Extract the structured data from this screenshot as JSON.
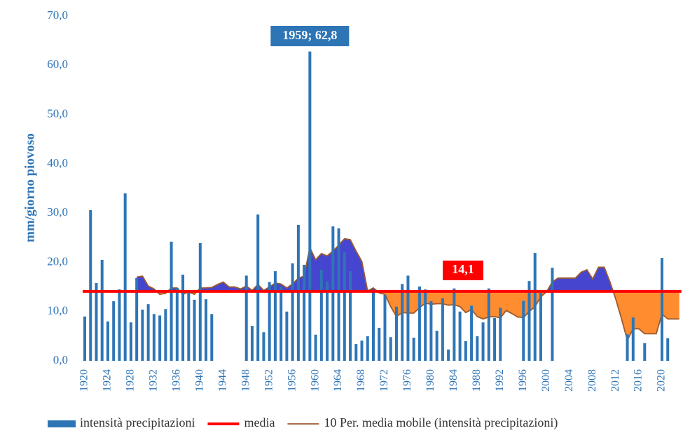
{
  "chart_data": {
    "type": "bar-line",
    "y_label": "mm/giorno piovoso",
    "categories": [
      "1920",
      null,
      null,
      null,
      "1924",
      null,
      null,
      null,
      "1928",
      null,
      null,
      null,
      "1932",
      null,
      null,
      null,
      "1936",
      null,
      null,
      null,
      "1940",
      null,
      null,
      null,
      "1944",
      null,
      null,
      null,
      "1948",
      null,
      null,
      null,
      "1952",
      null,
      null,
      null,
      "1956",
      null,
      null,
      null,
      "1960",
      null,
      null,
      null,
      "1964",
      null,
      null,
      null,
      "1968",
      null,
      null,
      null,
      "1972",
      null,
      null,
      null,
      "1976",
      null,
      null,
      null,
      "1980",
      null,
      null,
      null,
      "1984",
      null,
      null,
      null,
      "1988",
      null,
      null,
      null,
      "1992",
      null,
      null,
      null,
      "1996",
      null,
      null,
      null,
      "2000",
      null,
      null,
      null,
      "2004",
      null,
      null,
      null,
      "2008",
      null,
      null,
      null,
      "2012",
      null,
      null,
      null,
      "2016",
      null,
      null,
      null,
      "2020",
      null,
      null,
      null
    ],
    "series": [
      {
        "name": "intensità precipitazioni",
        "color": "#2e75b6",
        "type": "bar",
        "values": [
          9.0,
          30.6,
          15.8,
          20.5,
          8.0,
          12.1,
          14.5,
          34.0,
          7.8,
          16.8,
          10.4,
          11.5,
          9.5,
          9.2,
          10.5,
          24.2,
          14.8,
          17.5,
          14.0,
          12.4,
          23.9,
          12.5,
          9.5,
          null,
          null,
          null,
          null,
          null,
          17.3,
          7.1,
          29.7,
          5.8,
          16.0,
          18.2,
          15.0,
          10.0,
          19.8,
          27.6,
          19.5,
          62.8,
          5.3,
          18.5,
          16.1,
          27.3,
          26.9,
          22.0,
          18.2,
          3.4,
          4.1,
          5.0,
          14.0,
          6.7,
          13.4,
          4.8,
          11.0,
          15.6,
          17.3,
          4.7,
          15.1,
          14.5,
          12.1,
          6.1,
          12.7,
          2.3,
          14.7,
          10.0,
          4.0,
          11.2,
          5.0,
          7.8,
          14.7,
          8.7,
          10.8,
          null,
          null,
          null,
          12.2,
          16.2,
          21.9,
          13.8,
          null,
          18.9,
          null,
          null,
          null,
          null,
          null,
          null,
          null,
          null,
          null,
          null,
          null,
          null,
          5.4,
          8.8,
          null,
          3.6,
          null,
          null,
          20.9,
          4.6,
          null,
          null
        ],
        "value_labels": [
          null,
          null,
          null,
          null,
          null,
          null,
          null,
          null,
          null,
          null,
          null,
          null,
          null,
          null,
          null,
          null,
          null,
          null,
          null,
          null,
          null,
          null,
          null,
          null,
          null,
          null,
          null,
          null,
          null,
          null,
          null,
          null,
          null,
          null,
          null,
          null,
          null,
          null,
          null,
          "1959; 62,8",
          null,
          null,
          null,
          null,
          null,
          null,
          null,
          null,
          null,
          null,
          null,
          null,
          null,
          null,
          null,
          null,
          null,
          null,
          null,
          null,
          null,
          null,
          null,
          null,
          null,
          null,
          null,
          null,
          null,
          null,
          null,
          null,
          null,
          null,
          null,
          null,
          null,
          null,
          null,
          null,
          null,
          null,
          null,
          null,
          null,
          null,
          null,
          null,
          null,
          null,
          null,
          null,
          null,
          null,
          null,
          null,
          null,
          null,
          null,
          null,
          null,
          null,
          null,
          null
        ]
      },
      {
        "name": "media",
        "color": "#ff0000",
        "type": "hline",
        "value": 14.1,
        "value_label": "14,1"
      },
      {
        "name": "10 Per. media mobile (intensità precipitazioni)",
        "color": "#9c5a2e",
        "type": "line",
        "above_color": "#4545cf",
        "below_color": "#ff8c2e",
        "values": [
          null,
          null,
          null,
          null,
          null,
          null,
          null,
          null,
          null,
          17.0,
          17.2,
          15.2,
          14.6,
          13.5,
          13.7,
          14.8,
          14.8,
          13.5,
          14.0,
          13.5,
          14.8,
          14.8,
          14.9,
          15.5,
          16.0,
          15.0,
          15.0,
          14.6,
          15.2,
          14.3,
          15.5,
          14.3,
          15.0,
          15.8,
          15.6,
          14.8,
          15.6,
          16.8,
          17.2,
          23.0,
          20.5,
          21.8,
          21.3,
          22.3,
          23.5,
          24.8,
          24.6,
          22.3,
          20.2,
          14.2,
          14.8,
          13.8,
          13.5,
          11.0,
          9.0,
          9.8,
          9.7,
          9.7,
          10.8,
          11.7,
          11.5,
          11.6,
          11.6,
          11.3,
          11.4,
          11.0,
          9.8,
          10.4,
          9.0,
          8.5,
          8.9,
          9.0,
          8.7,
          10.2,
          9.6,
          8.9,
          8.8,
          10.0,
          11.0,
          13.0,
          14.0,
          16.0,
          16.8,
          16.8,
          16.8,
          16.8,
          18.0,
          18.5,
          16.6,
          19.0,
          19.0,
          16.0,
          12.5,
          8.5,
          4.2,
          6.5,
          6.5,
          5.5,
          5.5,
          5.5,
          9.5,
          8.5,
          8.5,
          8.5
        ]
      }
    ],
    "ylim": [
      0,
      70
    ],
    "yticks": [
      {
        "value": 0,
        "label": "0,0"
      },
      {
        "value": 10,
        "label": "10,0"
      },
      {
        "value": 20,
        "label": "20,0"
      },
      {
        "value": 30,
        "label": "30,0"
      },
      {
        "value": 40,
        "label": "40,0"
      },
      {
        "value": 50,
        "label": "50,0"
      },
      {
        "value": 60,
        "label": "60,0"
      },
      {
        "value": 70,
        "label": "70,0"
      }
    ],
    "grid": false,
    "legend": "bottom"
  }
}
